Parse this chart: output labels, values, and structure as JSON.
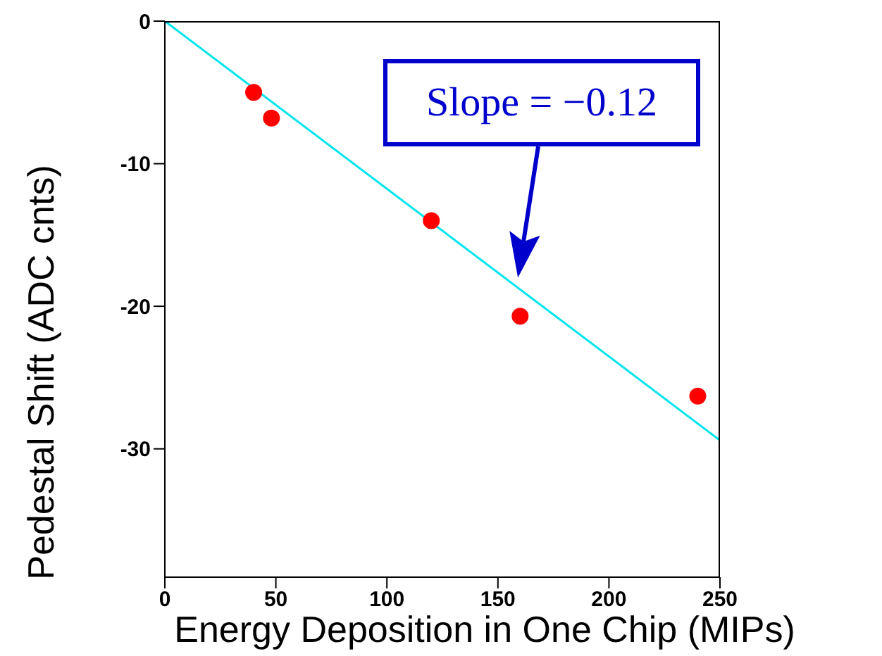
{
  "chart_data": {
    "type": "scatter",
    "xlabel": "Energy Deposition in One Chip (MIPs)",
    "ylabel": "Pedestal Shift  (ADC cnts)",
    "xlim": [
      0,
      250
    ],
    "xticks": [
      0,
      50,
      100,
      150,
      200,
      250
    ],
    "ylim": [
      -39,
      0
    ],
    "yticks": [
      -30,
      -20,
      -10,
      0
    ],
    "series": [
      {
        "type": "scatter",
        "color": "#ff0000",
        "marker": "circle",
        "x": [
          40,
          48,
          120,
          160,
          240
        ],
        "values": [
          -5,
          -6.8,
          -14,
          -20.7,
          -26.3
        ]
      },
      {
        "type": "line",
        "color": "#00e5ee",
        "marker": "none",
        "x": [
          0,
          250
        ],
        "values": [
          0,
          -29.4
        ]
      }
    ],
    "annotations": [
      "Slope = −0.12"
    ]
  }
}
